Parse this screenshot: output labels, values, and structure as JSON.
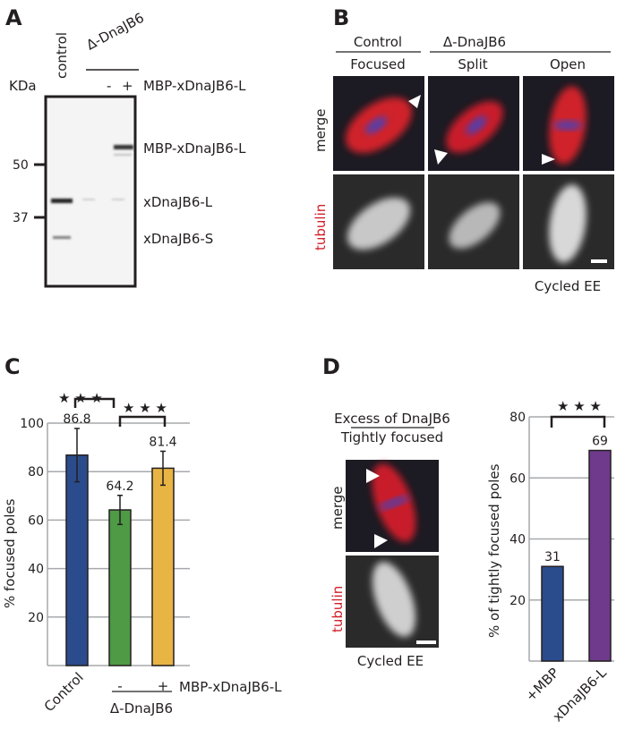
{
  "panelA": {
    "letter": "A",
    "lane_control": "control",
    "group_label": "Δ-DnaJB6",
    "units": "KDa",
    "minus": "-",
    "plus": "+",
    "construct": "MBP-xDnaJB6-L",
    "markers": [
      "50",
      "37"
    ],
    "bands": [
      "MBP-xDnaJB6-L",
      "xDnaJB6-L",
      "xDnaJB6-S"
    ]
  },
  "panelB": {
    "letter": "B",
    "group_control": "Control",
    "group_delta": "Δ-DnaJB6",
    "columns": [
      "Focused",
      "Split",
      "Open"
    ],
    "rows": [
      "merge",
      "tubulin"
    ],
    "caption": "Cycled EE"
  },
  "panelC": {
    "letter": "C",
    "treatment": "MBP-xDnaJB6-L",
    "group_label": "Δ-DnaJB6",
    "significance": "★ ★ ★"
  },
  "panelD": {
    "letter": "D",
    "title_line1": "Excess of DnaJB6",
    "title_line2": "Tightly focused",
    "rows": [
      "merge",
      "tubulin"
    ],
    "caption": "Cycled EE",
    "significance": "★ ★ ★"
  },
  "colors": {
    "blue": "#2b4c8c",
    "green": "#4e9a45",
    "yellow": "#e8b443",
    "purple": "#6f3a8c",
    "red": "#d0202a"
  },
  "chart_data": [
    {
      "type": "bar",
      "title": "",
      "ylabel": "% focused poles",
      "ylim": [
        0,
        100
      ],
      "yticks": [
        "20",
        "40",
        "60",
        "80",
        "100"
      ],
      "categories": [
        "Control",
        "-",
        "+"
      ],
      "values": [
        86.8,
        64.2,
        81.4
      ],
      "value_labels": [
        "86.8",
        "64.2",
        "81.4"
      ],
      "errors": [
        11,
        6,
        7
      ],
      "grid": true
    },
    {
      "type": "bar",
      "title": "",
      "ylabel": "% of tightly focused poles",
      "ylim": [
        0,
        80
      ],
      "yticks": [
        "20",
        "40",
        "60",
        "80"
      ],
      "categories": [
        "+MBP",
        "xDnaJB6-L"
      ],
      "values": [
        31,
        69
      ],
      "value_labels": [
        "31",
        "69"
      ],
      "grid": true
    }
  ]
}
